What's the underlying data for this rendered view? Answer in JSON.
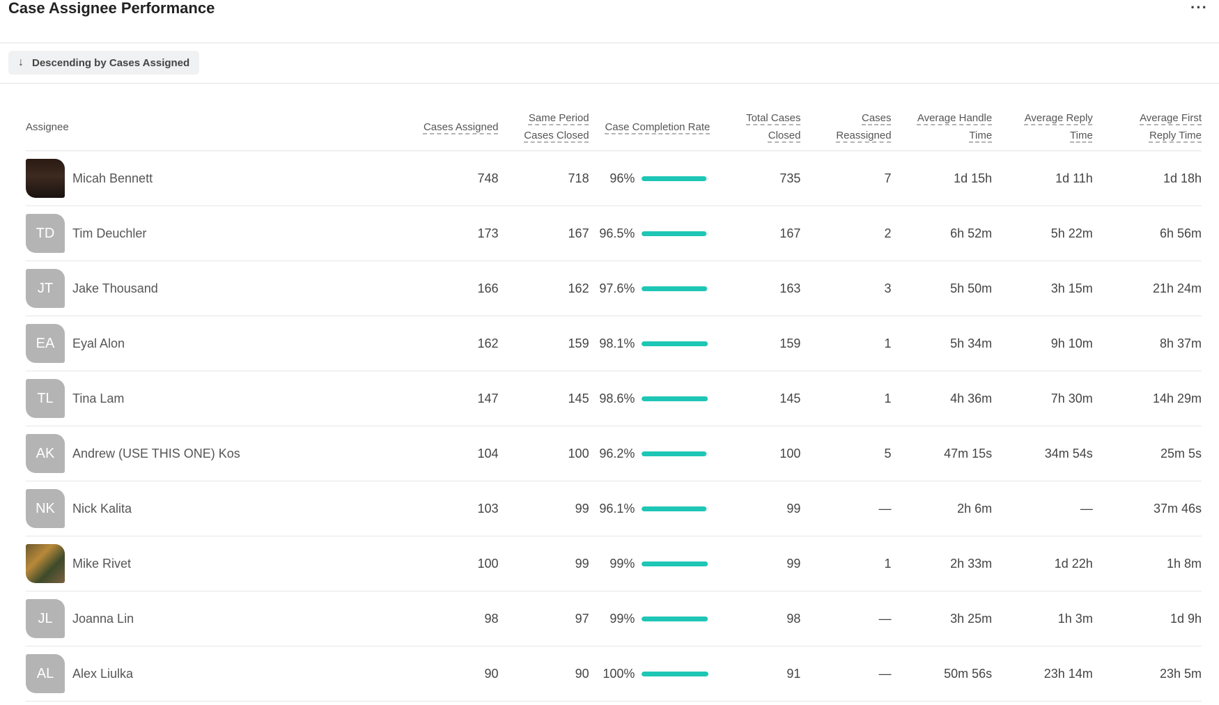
{
  "title": "Case Assignee Performance",
  "more_label": "···",
  "sort": {
    "label": "Descending by Cases Assigned"
  },
  "columns": {
    "assignee": "Assignee",
    "cases_assigned": "Cases Assigned",
    "same_period_closed_1": "Same Period",
    "same_period_closed_2": "Cases Closed",
    "completion_rate": "Case Completion Rate",
    "total_closed_1": "Total Cases",
    "total_closed_2": "Closed",
    "reassigned_1": "Cases",
    "reassigned_2": "Reassigned",
    "handle_time_1": "Average Handle",
    "handle_time_2": "Time",
    "reply_time_1": "Average Reply",
    "reply_time_2": "Time",
    "first_reply_1": "Average First",
    "first_reply_2": "Reply Time"
  },
  "colors": {
    "bar": "#1ec6b5",
    "avatar_bg": "#b4b4b4"
  },
  "rows": [
    {
      "initials": "",
      "avatar": "photo-1",
      "name": "Micah Bennett",
      "assigned": "748",
      "closed_same": "718",
      "rate": "96%",
      "rate_value": 0.96,
      "closed_total": "735",
      "reassigned": "7",
      "handle": "1d 15h",
      "reply": "1d 11h",
      "first_reply": "1d 18h"
    },
    {
      "initials": "TD",
      "avatar": "",
      "name": "Tim Deuchler",
      "assigned": "173",
      "closed_same": "167",
      "rate": "96.5%",
      "rate_value": 0.965,
      "closed_total": "167",
      "reassigned": "2",
      "handle": "6h 52m",
      "reply": "5h 22m",
      "first_reply": "6h 56m"
    },
    {
      "initials": "JT",
      "avatar": "",
      "name": "Jake Thousand",
      "assigned": "166",
      "closed_same": "162",
      "rate": "97.6%",
      "rate_value": 0.976,
      "closed_total": "163",
      "reassigned": "3",
      "handle": "5h 50m",
      "reply": "3h 15m",
      "first_reply": "21h 24m"
    },
    {
      "initials": "EA",
      "avatar": "",
      "name": "Eyal Alon",
      "assigned": "162",
      "closed_same": "159",
      "rate": "98.1%",
      "rate_value": 0.981,
      "closed_total": "159",
      "reassigned": "1",
      "handle": "5h 34m",
      "reply": "9h 10m",
      "first_reply": "8h 37m"
    },
    {
      "initials": "TL",
      "avatar": "",
      "name": "Tina Lam",
      "assigned": "147",
      "closed_same": "145",
      "rate": "98.6%",
      "rate_value": 0.986,
      "closed_total": "145",
      "reassigned": "1",
      "handle": "4h 36m",
      "reply": "7h 30m",
      "first_reply": "14h 29m"
    },
    {
      "initials": "AK",
      "avatar": "",
      "name": "Andrew (USE THIS ONE) Kos",
      "assigned": "104",
      "closed_same": "100",
      "rate": "96.2%",
      "rate_value": 0.962,
      "closed_total": "100",
      "reassigned": "5",
      "handle": "47m 15s",
      "reply": "34m 54s",
      "first_reply": "25m 5s"
    },
    {
      "initials": "NK",
      "avatar": "",
      "name": "Nick Kalita",
      "assigned": "103",
      "closed_same": "99",
      "rate": "96.1%",
      "rate_value": 0.961,
      "closed_total": "99",
      "reassigned": "—",
      "handle": "2h 6m",
      "reply": "—",
      "first_reply": "37m 46s"
    },
    {
      "initials": "",
      "avatar": "photo-2",
      "name": "Mike Rivet",
      "assigned": "100",
      "closed_same": "99",
      "rate": "99%",
      "rate_value": 0.99,
      "closed_total": "99",
      "reassigned": "1",
      "handle": "2h 33m",
      "reply": "1d 22h",
      "first_reply": "1h 8m"
    },
    {
      "initials": "JL",
      "avatar": "",
      "name": "Joanna Lin",
      "assigned": "98",
      "closed_same": "97",
      "rate": "99%",
      "rate_value": 0.99,
      "closed_total": "98",
      "reassigned": "—",
      "handle": "3h 25m",
      "reply": "1h 3m",
      "first_reply": "1d 9h"
    },
    {
      "initials": "AL",
      "avatar": "",
      "name": "Alex Liulka",
      "assigned": "90",
      "closed_same": "90",
      "rate": "100%",
      "rate_value": 1.0,
      "closed_total": "91",
      "reassigned": "—",
      "handle": "50m 56s",
      "reply": "23h 14m",
      "first_reply": "23h 5m"
    }
  ]
}
